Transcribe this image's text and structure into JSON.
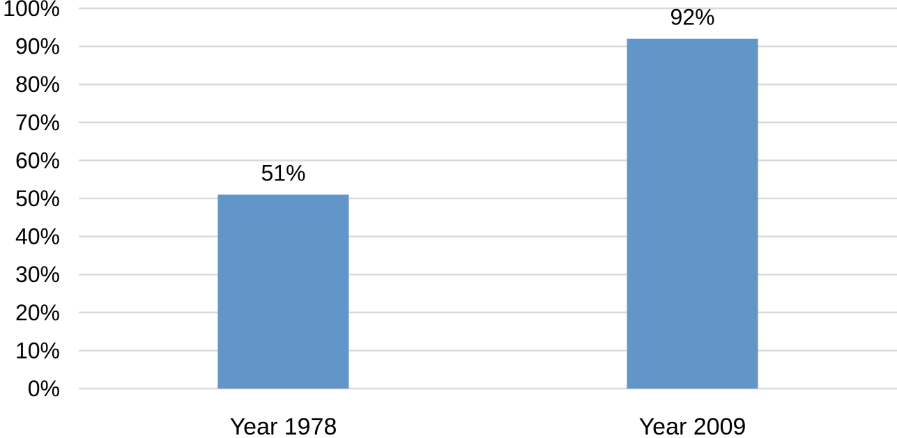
{
  "chart_data": {
    "type": "bar",
    "categories": [
      "Year 1978",
      "Year 2009"
    ],
    "values": [
      51,
      92
    ],
    "data_labels": [
      "51%",
      "92%"
    ],
    "title": "",
    "xlabel": "",
    "ylabel": "",
    "ylim": [
      0,
      100
    ],
    "yticks": [
      0,
      10,
      20,
      30,
      40,
      50,
      60,
      70,
      80,
      90,
      100
    ],
    "ytick_labels": [
      "0%",
      "10%",
      "20%",
      "30%",
      "40%",
      "50%",
      "60%",
      "70%",
      "80%",
      "90%",
      "100%"
    ],
    "grid": true,
    "legend": "none",
    "colors": {
      "bar": "#6396c8",
      "grid": "#d9d9d9",
      "text": "#000000"
    }
  }
}
